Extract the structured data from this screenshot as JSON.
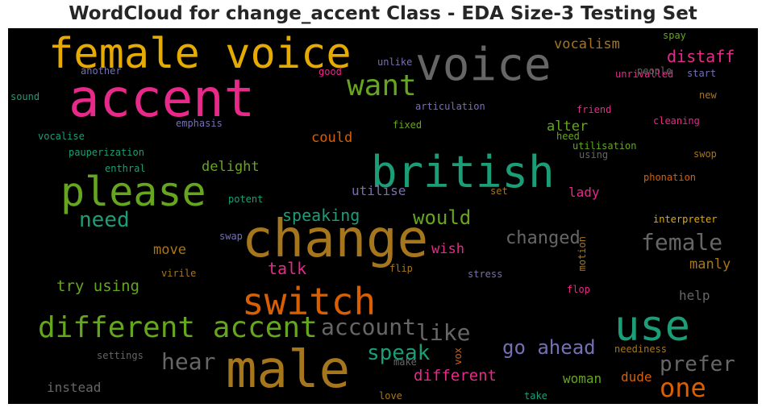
{
  "title": "WordCloud for change_accent Class - EDA Size-3 Testing Set",
  "colors": {
    "pink": "#e7298a",
    "gold": "#e6ab02",
    "gray": "#666666",
    "green": "#66a61e",
    "teal": "#1b9e77",
    "orange": "#d95f02",
    "purple": "#7570b3",
    "brown": "#a6761d"
  },
  "words": [
    {
      "text": "female voice",
      "color": "gold"
    },
    {
      "text": "voice",
      "color": "gray"
    },
    {
      "text": "accent",
      "color": "pink"
    },
    {
      "text": "want",
      "color": "green"
    },
    {
      "text": "british",
      "color": "teal"
    },
    {
      "text": "please",
      "color": "green"
    },
    {
      "text": "change",
      "color": "brown"
    },
    {
      "text": "switch",
      "color": "orange"
    },
    {
      "text": "use",
      "color": "teal"
    },
    {
      "text": "male",
      "color": "brown"
    },
    {
      "text": "different accent",
      "color": "green"
    },
    {
      "text": "need",
      "color": "teal"
    },
    {
      "text": "one",
      "color": "orange"
    },
    {
      "text": "account",
      "color": "gray"
    },
    {
      "text": "like",
      "color": "gray"
    },
    {
      "text": "female",
      "color": "gray"
    },
    {
      "text": "prefer",
      "color": "gray"
    },
    {
      "text": "go ahead",
      "color": "purple"
    },
    {
      "text": "hear",
      "color": "gray"
    },
    {
      "text": "speak",
      "color": "teal"
    },
    {
      "text": "would",
      "color": "green"
    },
    {
      "text": "changed",
      "color": "gray"
    },
    {
      "text": "distaff",
      "color": "pink"
    },
    {
      "text": "speaking",
      "color": "teal"
    },
    {
      "text": "talk",
      "color": "pink"
    },
    {
      "text": "different",
      "color": "pink"
    },
    {
      "text": "try using",
      "color": "green"
    },
    {
      "text": "vocalism",
      "color": "brown"
    },
    {
      "text": "could",
      "color": "orange"
    },
    {
      "text": "alter",
      "color": "green"
    },
    {
      "text": "delight",
      "color": "green"
    },
    {
      "text": "utilise",
      "color": "purple"
    },
    {
      "text": "lady",
      "color": "pink"
    },
    {
      "text": "move",
      "color": "brown"
    },
    {
      "text": "wish",
      "color": "pink"
    },
    {
      "text": "manly",
      "color": "brown"
    },
    {
      "text": "woman",
      "color": "green"
    },
    {
      "text": "dude",
      "color": "orange"
    },
    {
      "text": "instead",
      "color": "gray"
    },
    {
      "text": "help",
      "color": "gray"
    },
    {
      "text": "articulation",
      "color": "purple"
    },
    {
      "text": "unlike",
      "color": "purple"
    },
    {
      "text": "another",
      "color": "purple"
    },
    {
      "text": "good",
      "color": "pink"
    },
    {
      "text": "sound",
      "color": "teal"
    },
    {
      "text": "emphasis",
      "color": "purple"
    },
    {
      "text": "vocalise",
      "color": "teal"
    },
    {
      "text": "fixed",
      "color": "green"
    },
    {
      "text": "pauperization",
      "color": "teal"
    },
    {
      "text": "enthral",
      "color": "teal"
    },
    {
      "text": "potent",
      "color": "teal"
    },
    {
      "text": "spay",
      "color": "green"
    },
    {
      "text": "people",
      "color": "gray"
    },
    {
      "text": "unrivalled",
      "color": "pink"
    },
    {
      "text": "start",
      "color": "purple"
    },
    {
      "text": "new",
      "color": "brown"
    },
    {
      "text": "friend",
      "color": "pink"
    },
    {
      "text": "heed",
      "color": "green"
    },
    {
      "text": "cleaning",
      "color": "pink"
    },
    {
      "text": "utilisation",
      "color": "green"
    },
    {
      "text": "using",
      "color": "gray"
    },
    {
      "text": "swop",
      "color": "brown"
    },
    {
      "text": "phonation",
      "color": "orange"
    },
    {
      "text": "set",
      "color": "brown"
    },
    {
      "text": "interpreter",
      "color": "gold"
    },
    {
      "text": "motion",
      "color": "brown"
    },
    {
      "text": "swap",
      "color": "purple"
    },
    {
      "text": "virile",
      "color": "brown"
    },
    {
      "text": "flip",
      "color": "brown"
    },
    {
      "text": "stress",
      "color": "purple"
    },
    {
      "text": "flop",
      "color": "pink"
    },
    {
      "text": "settings",
      "color": "gray"
    },
    {
      "text": "make",
      "color": "gray"
    },
    {
      "text": "vox",
      "color": "orange"
    },
    {
      "text": "neediness",
      "color": "brown"
    },
    {
      "text": "love",
      "color": "brown"
    },
    {
      "text": "take",
      "color": "teal"
    }
  ]
}
